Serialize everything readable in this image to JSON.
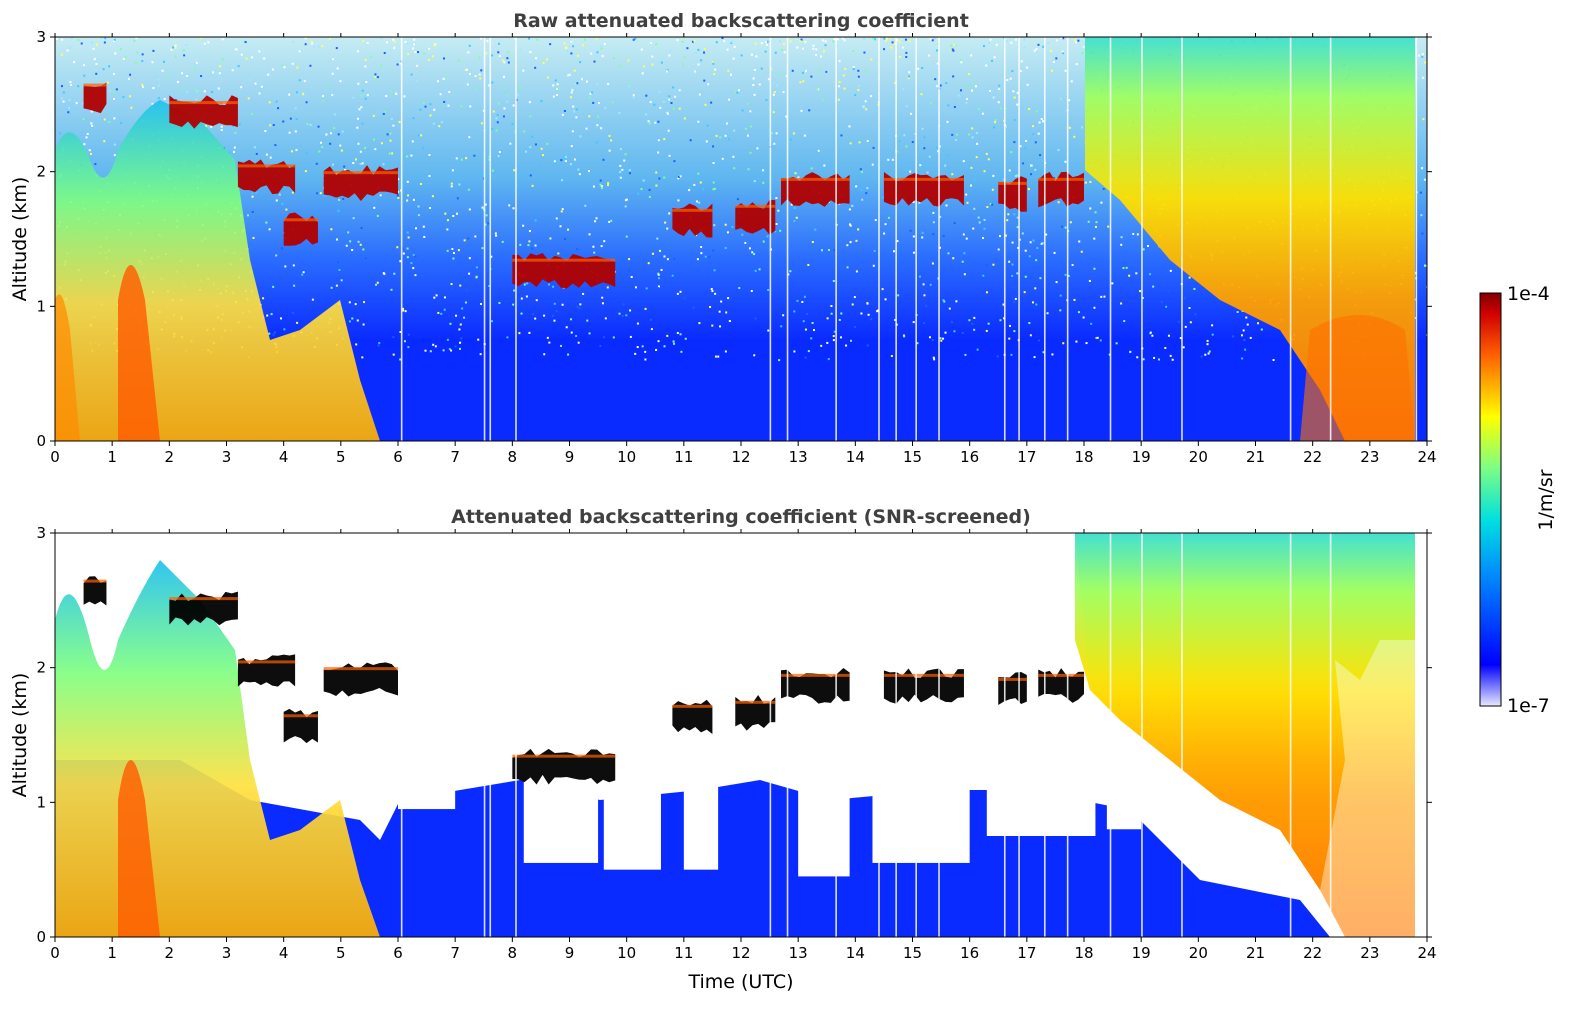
{
  "chart_data": [
    {
      "type": "heatmap",
      "title": "Raw attenuated backscattering coefficient",
      "ylabel": "Altitude (km)",
      "xlabel": "",
      "xlim": [
        0,
        24
      ],
      "ylim": [
        0,
        3
      ],
      "xticks": [
        "0",
        "1",
        "2",
        "3",
        "4",
        "5",
        "6",
        "7",
        "8",
        "9",
        "10",
        "11",
        "12",
        "13",
        "14",
        "15",
        "16",
        "17",
        "18",
        "19",
        "20",
        "21",
        "22",
        "23",
        "24"
      ],
      "yticks": [
        "0",
        "1",
        "2",
        "3"
      ],
      "cloud_layers": [
        {
          "t0": 0.5,
          "t1": 0.9,
          "h": 2.55
        },
        {
          "t0": 2.0,
          "t1": 3.2,
          "h": 2.42
        },
        {
          "t0": 3.2,
          "t1": 4.2,
          "h": 1.95
        },
        {
          "t0": 4.0,
          "t1": 4.6,
          "h": 1.55
        },
        {
          "t0": 4.7,
          "t1": 6.0,
          "h": 1.9
        },
        {
          "t0": 8.0,
          "t1": 9.8,
          "h": 1.25
        },
        {
          "t0": 10.8,
          "t1": 11.5,
          "h": 1.62
        },
        {
          "t0": 11.9,
          "t1": 12.6,
          "h": 1.65
        },
        {
          "t0": 12.7,
          "t1": 13.9,
          "h": 1.85
        },
        {
          "t0": 14.5,
          "t1": 15.9,
          "h": 1.85
        },
        {
          "t0": 16.5,
          "t1": 17.0,
          "h": 1.82
        },
        {
          "t0": 17.2,
          "t1": 18.0,
          "h": 1.85
        }
      ]
    },
    {
      "type": "heatmap",
      "title": "Attenuated backscattering coefficient (SNR-screened)",
      "ylabel": "Altitude (km)",
      "xlabel": "Time (UTC)",
      "xlim": [
        0,
        24
      ],
      "ylim": [
        0,
        3
      ],
      "xticks": [
        "0",
        "1",
        "2",
        "3",
        "4",
        "5",
        "6",
        "7",
        "8",
        "9",
        "10",
        "11",
        "12",
        "13",
        "14",
        "15",
        "16",
        "17",
        "18",
        "19",
        "20",
        "21",
        "22",
        "23",
        "24"
      ],
      "yticks": [
        "0",
        "1",
        "2",
        "3"
      ]
    }
  ],
  "colorbar": {
    "label": "1/m/sr",
    "max_label": "1e-4",
    "min_label": "1e-7",
    "range": [
      1e-07,
      0.0001
    ],
    "scale": "log",
    "colormap": "jet"
  }
}
